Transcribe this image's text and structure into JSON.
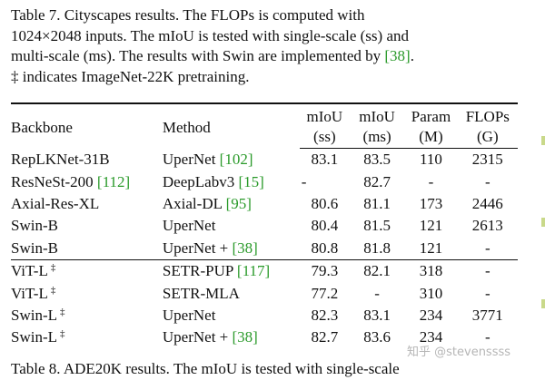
{
  "caption": {
    "line1": "Table 7.  Cityscapes results.  The FLOPs is computed with",
    "line2": "1024×2048 inputs. The mIoU is tested with single-scale (ss) and",
    "line3_pre": "multi-scale (ms). The results with Swin are implemented by ",
    "line3_cite": "[38]",
    "line3_post": ".",
    "line4": "‡ indicates ImageNet-22K pretraining."
  },
  "table": {
    "headers": {
      "backbone": "Backbone",
      "method": "Method",
      "miou_ss": [
        "mIoU",
        "(ss)"
      ],
      "miou_ms": [
        "mIoU",
        "(ms)"
      ],
      "param": [
        "Param",
        "(M)"
      ],
      "flops": [
        "FLOPs",
        "(G)"
      ]
    },
    "rows": [
      {
        "backbone": "RepLKNet-31B",
        "sup": "",
        "method": "UperNet ",
        "cite": "[102]",
        "ss": "83.1",
        "ms": "83.5",
        "param": "110",
        "flops": "2315"
      },
      {
        "backbone": "ResNeSt-200 ",
        "backbone_cite": "[112]",
        "sup": "",
        "method": "DeepLabv3 ",
        "cite": "[15]",
        "ss": "-",
        "ms": "82.7",
        "param": "-",
        "flops": "-"
      },
      {
        "backbone": "Axial-Res-XL",
        "sup": "",
        "method": "Axial-DL ",
        "cite": "[95]",
        "ss": "80.6",
        "ms": "81.1",
        "param": "173",
        "flops": "2446"
      },
      {
        "backbone": "Swin-B",
        "sup": "",
        "method": "UperNet",
        "cite": "",
        "ss": "80.4",
        "ms": "81.5",
        "param": "121",
        "flops": "2613"
      },
      {
        "backbone": "Swin-B",
        "sup": "",
        "method": "UperNet + ",
        "cite": "[38]",
        "ss": "80.8",
        "ms": "81.8",
        "param": "121",
        "flops": "-"
      },
      {
        "backbone": "ViT-L",
        "sup": "‡",
        "method": "SETR-PUP ",
        "cite": "[117]",
        "ss": "79.3",
        "ms": "82.1",
        "param": "318",
        "flops": "-"
      },
      {
        "backbone": "ViT-L",
        "sup": "‡",
        "method": "SETR-MLA",
        "cite": "",
        "ss": "77.2",
        "ms": "-",
        "param": "310",
        "flops": "-"
      },
      {
        "backbone": "Swin-L",
        "sup": "‡",
        "method": "UperNet",
        "cite": "",
        "ss": "82.3",
        "ms": "83.1",
        "param": "234",
        "flops": "3771"
      },
      {
        "backbone": "Swin-L",
        "sup": "‡",
        "method": "UperNet + ",
        "cite": "[38]",
        "ss": "82.7",
        "ms": "83.6",
        "param": "234",
        "flops": "-"
      }
    ]
  },
  "next_caption": "Table 8.  ADE20K results.  The mIoU is tested with single-scale",
  "watermark": "知乎 @stevenssss"
}
